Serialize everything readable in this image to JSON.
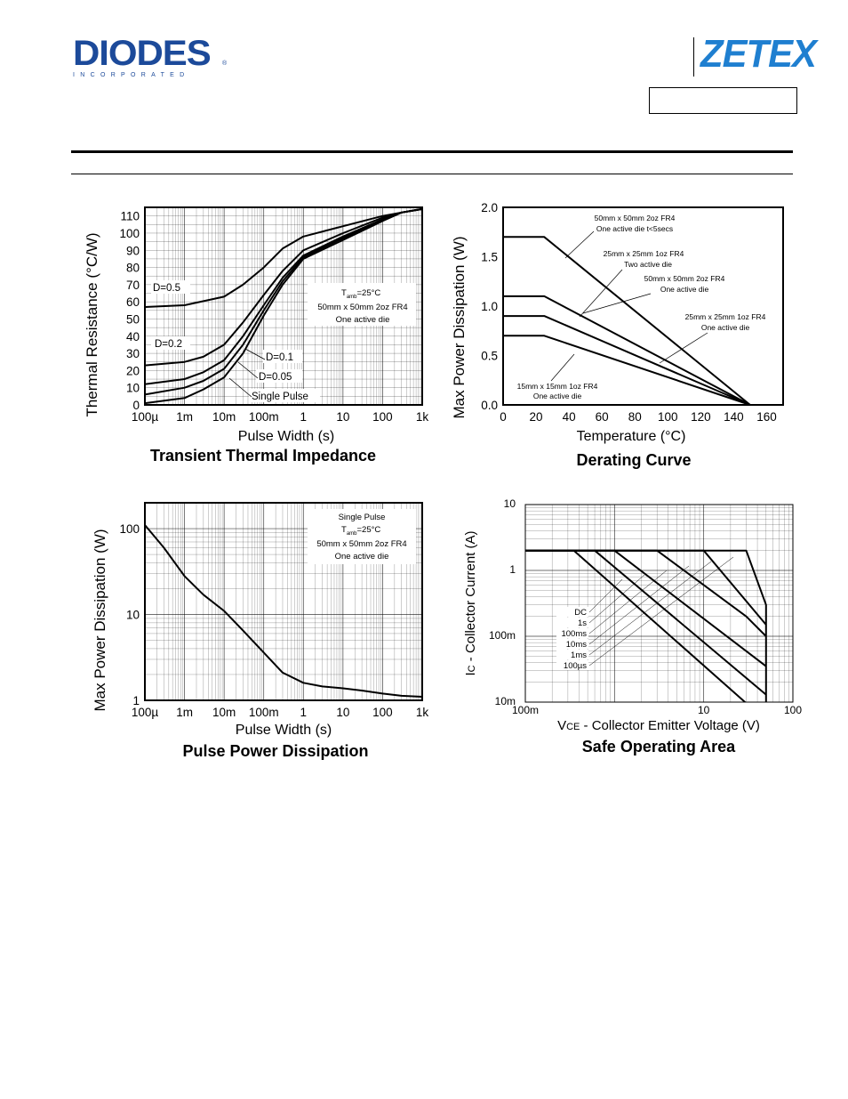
{
  "header": {
    "diodes_logo": "DIODES",
    "diodes_sub": "INCORPORATED",
    "diodes_reg": "®",
    "zetex_logo": "ZETEX"
  },
  "colors": {
    "diodes_blue": "#1c4a9a",
    "zetex_blue": "#1f7fd0"
  },
  "chart_data": [
    {
      "id": "tti",
      "type": "line",
      "title": "Transient Thermal Impedance",
      "xlabel": "Pulse Width (s)",
      "ylabel": "Thermal Resistance (°C/W)",
      "xscale": "log",
      "xlim": [
        0.0001,
        1000
      ],
      "ylim": [
        0,
        115
      ],
      "xticks": [
        0.0001,
        0.001,
        0.01,
        0.1,
        1,
        10,
        100,
        1000
      ],
      "xtick_labels": [
        "100µ",
        "1m",
        "10m",
        "100m",
        "1",
        "10",
        "100",
        "1k"
      ],
      "yticks": [
        0,
        10,
        20,
        30,
        40,
        50,
        60,
        70,
        80,
        90,
        100,
        110
      ],
      "ytick_labels": [
        "0",
        "10",
        "20",
        "30",
        "40",
        "50",
        "60",
        "70",
        "80",
        "90",
        "100",
        "110"
      ],
      "grid": true,
      "series": [
        {
          "name": "D=0.5",
          "x": [
            0.0001,
            0.001,
            0.01,
            0.03,
            0.1,
            0.3,
            1,
            10,
            100,
            300,
            1000
          ],
          "y": [
            57,
            58,
            63,
            70,
            80,
            91,
            98,
            104,
            110,
            112,
            114
          ]
        },
        {
          "name": "D=0.2",
          "x": [
            0.0001,
            0.001,
            0.003,
            0.01,
            0.03,
            0.1,
            0.3,
            1,
            10,
            100,
            300,
            1000
          ],
          "y": [
            23,
            25,
            28,
            35,
            48,
            64,
            78,
            90,
            100,
            109,
            112,
            114
          ]
        },
        {
          "name": "D=0.1",
          "x": [
            0.0001,
            0.001,
            0.003,
            0.01,
            0.03,
            0.1,
            0.3,
            1,
            10,
            100,
            300,
            1000
          ],
          "y": [
            12,
            15,
            19,
            26,
            40,
            58,
            74,
            87,
            98,
            108,
            112,
            114
          ]
        },
        {
          "name": "D=0.05",
          "x": [
            0.0001,
            0.001,
            0.003,
            0.01,
            0.03,
            0.1,
            0.3,
            1,
            10,
            100,
            300,
            1000
          ],
          "y": [
            6,
            10,
            14,
            21,
            35,
            55,
            72,
            86,
            97,
            108,
            112,
            114
          ]
        },
        {
          "name": "Single Pulse",
          "x": [
            0.0001,
            0.001,
            0.003,
            0.01,
            0.03,
            0.1,
            0.3,
            1,
            10,
            100,
            300,
            1000
          ],
          "y": [
            1,
            4,
            9,
            16,
            30,
            52,
            70,
            85,
            96,
            107,
            112,
            114
          ]
        }
      ],
      "labels": [
        "D=0.5",
        "D=0.2",
        "D=0.1",
        "D=0.05",
        "Single Pulse"
      ],
      "note": [
        "T",
        "amb",
        "=25°C",
        "50mm x 50mm 2oz FR4",
        "One active die"
      ]
    },
    {
      "id": "derating",
      "type": "line",
      "title": "Derating Curve",
      "xlabel": "Temperature (°C)",
      "ylabel": "Max Power Dissipation (W)",
      "xlim": [
        0,
        170
      ],
      "ylim": [
        0,
        2.0
      ],
      "xticks": [
        0,
        20,
        40,
        60,
        80,
        100,
        120,
        140,
        160
      ],
      "xtick_labels": [
        "0",
        "20",
        "40",
        "60",
        "80",
        "100",
        "120",
        "140",
        "160"
      ],
      "yticks": [
        0,
        0.5,
        1.0,
        1.5,
        2.0
      ],
      "ytick_labels": [
        "0.0",
        "0.5",
        "1.0",
        "1.5",
        "2.0"
      ],
      "grid": false,
      "series": [
        {
          "name": "50mm x 50mm 2oz FR4 One active die t<5secs",
          "x": [
            0,
            25,
            150
          ],
          "y": [
            1.7,
            1.7,
            0
          ]
        },
        {
          "name": "25mm x 25mm 1oz FR4 Two active die",
          "x": [
            0,
            25,
            150
          ],
          "y": [
            1.1,
            1.1,
            0
          ]
        },
        {
          "name": "25mm x 25mm 1oz FR4 One active die",
          "x": [
            0,
            25,
            150
          ],
          "y": [
            0.9,
            0.9,
            0
          ]
        },
        {
          "name": "15mm x 15mm 1oz FR4 One active die",
          "x": [
            0,
            25,
            150
          ],
          "y": [
            0.7,
            0.7,
            0
          ]
        }
      ],
      "annotations": [
        "50mm x 50mm 2oz FR4",
        "One active die t<5secs",
        "25mm x 25mm 1oz FR4",
        "Two active die",
        "50mm x 50mm 2oz FR4",
        "One active die",
        "25mm x 25mm 1oz FR4",
        "One active die",
        "15mm x 15mm 1oz FR4",
        "One active die"
      ]
    },
    {
      "id": "ppd",
      "type": "line",
      "title": "Pulse Power Dissipation",
      "xlabel": "Pulse Width (s)",
      "ylabel": "Max Power Dissipation (W)",
      "xscale": "log",
      "yscale": "log",
      "xlim": [
        0.0001,
        1000
      ],
      "ylim": [
        1,
        200
      ],
      "xticks": [
        0.0001,
        0.001,
        0.01,
        0.1,
        1,
        10,
        100,
        1000
      ],
      "xtick_labels": [
        "100µ",
        "1m",
        "10m",
        "100m",
        "1",
        "10",
        "100",
        "1k"
      ],
      "yticks": [
        1,
        10,
        100
      ],
      "ytick_labels": [
        "1",
        "10",
        "100"
      ],
      "grid": true,
      "series": [
        {
          "name": "Single Pulse",
          "x": [
            0.0001,
            0.0003,
            0.001,
            0.003,
            0.01,
            0.03,
            0.1,
            0.3,
            1,
            3,
            10,
            30,
            100,
            300,
            1000
          ],
          "y": [
            110,
            60,
            28,
            17,
            11,
            6.5,
            3.6,
            2.1,
            1.6,
            1.45,
            1.38,
            1.3,
            1.2,
            1.13,
            1.1
          ]
        }
      ],
      "note": [
        "Single Pulse",
        "T",
        "amb",
        "=25°C",
        "50mm x 50mm 2oz FR4",
        "One active die"
      ]
    },
    {
      "id": "soa",
      "type": "line",
      "title": "Safe Operating Area",
      "xlabel_prefix": "V",
      "xlabel_sub": "CE",
      "xlabel": " - Collector Emitter Voltage (V)",
      "ylabel_prefix": "I",
      "ylabel_sub": "C",
      "ylabel": " - Collector Current (A)",
      "xscale": "log",
      "yscale": "log",
      "xlim": [
        0.1,
        100
      ],
      "ylim": [
        0.01,
        10
      ],
      "xticks": [
        0.1,
        10,
        100
      ],
      "xtick_labels": [
        "100m",
        "10",
        "100"
      ],
      "yticks": [
        10,
        1,
        0.1,
        0.01
      ],
      "ytick_labels": [
        "10",
        "1",
        "100m",
        "10m"
      ],
      "grid": true,
      "series": [
        {
          "name": "DC",
          "x": [
            0.1,
            0.35,
            35
          ],
          "y": [
            2,
            2,
            0.008
          ]
        },
        {
          "name": "1s",
          "x": [
            0.1,
            0.6,
            50
          ],
          "y": [
            2,
            2,
            0.013
          ]
        },
        {
          "name": "100ms",
          "x": [
            0.1,
            1,
            50
          ],
          "y": [
            2,
            2,
            0.035
          ]
        },
        {
          "name": "10ms",
          "x": [
            0.1,
            3,
            30,
            50
          ],
          "y": [
            2,
            2,
            0.2,
            0.1
          ]
        },
        {
          "name": "1ms",
          "x": [
            0.1,
            10,
            50
          ],
          "y": [
            2,
            2,
            0.15
          ]
        },
        {
          "name": "100µs",
          "x": [
            0.1,
            30,
            50,
            50
          ],
          "y": [
            2,
            2,
            0.3,
            0.01
          ]
        }
      ],
      "legend_labels": [
        "DC",
        "1s",
        "100ms",
        "10ms",
        "1ms",
        "100µs"
      ]
    }
  ]
}
